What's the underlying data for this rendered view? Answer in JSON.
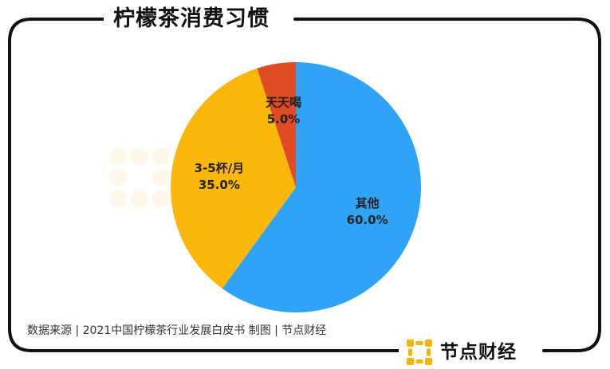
{
  "header": {
    "title": "柠檬茶消费习惯"
  },
  "footer": {
    "source": "数据来源 | 2021中国柠檬茶行业发展白皮书    制图 | 节点财经"
  },
  "brand": {
    "name": "节点财经",
    "logo_color": "#f5b400"
  },
  "colors": {
    "slice_other": "#2fa3f5",
    "slice_3_5": "#fbb80a",
    "slice_daily": "#de4b24",
    "frame": "#111111"
  },
  "chart_data": {
    "type": "pie",
    "title": "柠檬茶消费习惯",
    "slices": [
      {
        "label": "其他",
        "value": 60.0,
        "display": "60.0%",
        "color": "#2fa3f5"
      },
      {
        "label": "3-5杯/月",
        "value": 35.0,
        "display": "35.0%",
        "color": "#fbb80a"
      },
      {
        "label": "天天喝",
        "value": 5.0,
        "display": "5.0%",
        "color": "#de4b24"
      }
    ],
    "start_angle": "12 o'clock",
    "direction": "clockwise",
    "legend": "none"
  }
}
